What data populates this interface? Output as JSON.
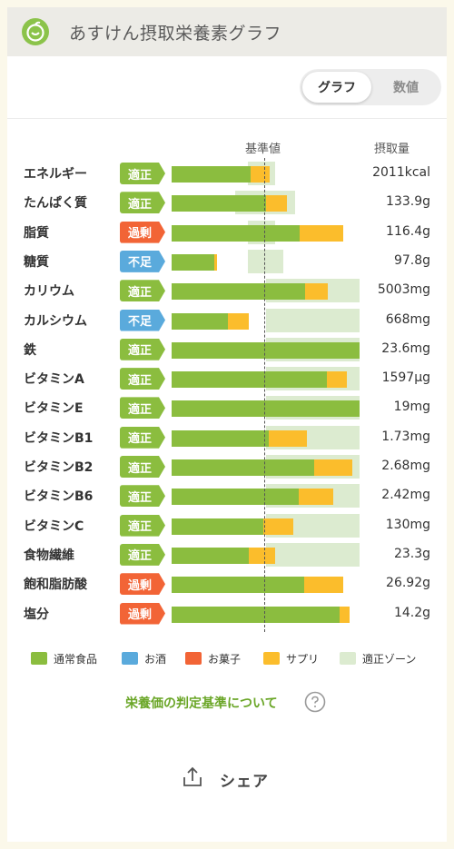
{
  "header": {
    "title": "あすけん摂取栄養素グラフ"
  },
  "toggle": {
    "graph_label": "グラフ",
    "value_label": "数値"
  },
  "columns": {
    "kijun": "基準値",
    "intake": "摂取量"
  },
  "colors": {
    "normal_food": "#8bbd3f",
    "alcohol": "#5aaadc",
    "sweets": "#f26436",
    "supplement": "#fbbd2c",
    "proper_zone": "#dcebd0",
    "status_ok": "#8bbd3f",
    "status_over": "#f26436",
    "status_short": "#5aaadc"
  },
  "chart_data": {
    "type": "bar",
    "categories": [
      "エネルギー",
      "たんぱく質",
      "脂質",
      "糖質",
      "カリウム",
      "カルシウム",
      "鉄",
      "ビタミンA",
      "ビタミンE",
      "ビタミンB1",
      "ビタミンB2",
      "ビタミンB6",
      "ビタミンC",
      "食物繊維",
      "飽和脂肪酸",
      "塩分"
    ],
    "status": [
      "適正",
      "適正",
      "過剰",
      "不足",
      "適正",
      "不足",
      "適正",
      "適正",
      "適正",
      "適正",
      "適正",
      "適正",
      "適正",
      "適正",
      "過剰",
      "過剰"
    ],
    "status_type": [
      "ok",
      "ok",
      "over",
      "short",
      "ok",
      "short",
      "ok",
      "ok",
      "ok",
      "ok",
      "ok",
      "ok",
      "ok",
      "ok",
      "over",
      "over"
    ],
    "intake_labels": [
      "2011kcal",
      "133.9g",
      "116.4g",
      "97.8g",
      "5003mg",
      "668mg",
      "23.6mg",
      "1597μg",
      "19mg",
      "1.73mg",
      "2.68mg",
      "2.42mg",
      "130mg",
      "23.3g",
      "26.92g",
      "14.2g"
    ],
    "series": [
      {
        "name": "通常食品",
        "values": [
          84,
          100,
          136,
          45,
          141,
          60,
          199,
          164,
          199,
          103,
          151,
          135,
          97,
          82,
          140,
          178
        ]
      },
      {
        "name": "サプリ",
        "values": [
          20,
          22,
          46,
          3,
          24,
          22,
          0,
          22,
          0,
          40,
          40,
          36,
          32,
          28,
          42,
          10
        ]
      }
    ],
    "proper_zone": [
      [
        81,
        110
      ],
      [
        67,
        131
      ],
      [
        81,
        110
      ],
      [
        81,
        118
      ],
      [
        100,
        199
      ],
      [
        100,
        199
      ],
      [
        100,
        199
      ],
      [
        100,
        199
      ],
      [
        100,
        199
      ],
      [
        100,
        199
      ],
      [
        100,
        199
      ],
      [
        100,
        199
      ],
      [
        100,
        199
      ],
      [
        100,
        199
      ],
      [
        null,
        null
      ],
      [
        null,
        null
      ]
    ],
    "baseline": 100,
    "xlim": [
      0,
      199
    ],
    "legend": [
      "通常食品",
      "お酒",
      "お菓子",
      "サプリ",
      "適正ゾーン"
    ]
  },
  "legend": [
    {
      "label": "通常食品",
      "color": "#8bbd3f"
    },
    {
      "label": "お酒",
      "color": "#5aaadc"
    },
    {
      "label": "お菓子",
      "color": "#f26436"
    },
    {
      "label": "サプリ",
      "color": "#fbbd2c"
    },
    {
      "label": "適正ゾーン",
      "color": "#dcebd0"
    }
  ],
  "footer": {
    "criteria_link": "栄養価の判定基準について",
    "help_icon": "question-circle-icon",
    "share_label": "シェア",
    "share_icon": "share-upload-icon"
  }
}
